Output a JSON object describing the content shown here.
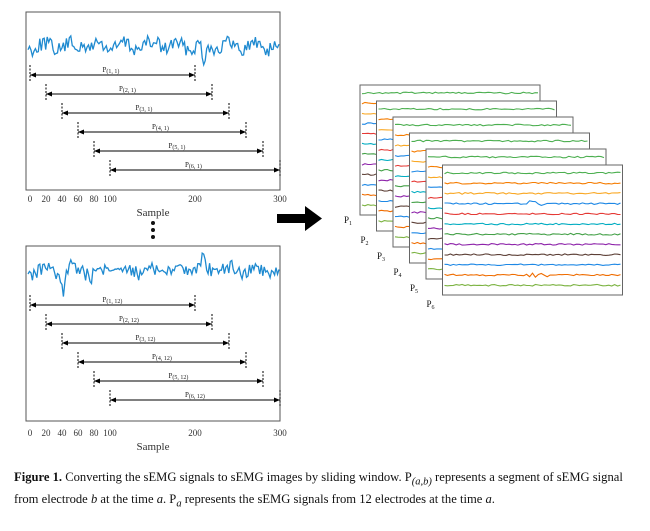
{
  "top_panel": {
    "x_ticks": [
      "0",
      "20",
      "40",
      "60",
      "80",
      "100",
      "200",
      "300"
    ],
    "x_title": "Sample",
    "segments": [
      {
        "label": "P",
        "sub": "(1, 1)",
        "start": 0,
        "end": 200
      },
      {
        "label": "P",
        "sub": "(2, 1)",
        "start": 20,
        "end": 220
      },
      {
        "label": "P",
        "sub": "(3, 1)",
        "start": 40,
        "end": 240
      },
      {
        "label": "P",
        "sub": "(4, 1)",
        "start": 60,
        "end": 260
      },
      {
        "label": "P",
        "sub": "(5, 1)",
        "start": 80,
        "end": 280
      },
      {
        "label": "P",
        "sub": "(6, 1)",
        "start": 100,
        "end": 300
      }
    ]
  },
  "bottom_panel": {
    "x_ticks": [
      "0",
      "20",
      "40",
      "60",
      "80",
      "100",
      "200",
      "300"
    ],
    "x_title": "Sample",
    "segments": [
      {
        "label": "P",
        "sub": "(1, 12)",
        "start": 0,
        "end": 200
      },
      {
        "label": "P",
        "sub": "(2, 12)",
        "start": 20,
        "end": 220
      },
      {
        "label": "P",
        "sub": "(3, 12)",
        "start": 40,
        "end": 240
      },
      {
        "label": "P",
        "sub": "(4, 12)",
        "start": 60,
        "end": 260
      },
      {
        "label": "P",
        "sub": "(5, 12)",
        "start": 80,
        "end": 280
      },
      {
        "label": "P",
        "sub": "(6, 12)",
        "start": 100,
        "end": 300
      }
    ]
  },
  "stack": {
    "labels": [
      {
        "main": "P",
        "sub": "1"
      },
      {
        "main": "P",
        "sub": "2"
      },
      {
        "main": "P",
        "sub": "3"
      },
      {
        "main": "P",
        "sub": "4"
      },
      {
        "main": "P",
        "sub": "5"
      },
      {
        "main": "P",
        "sub": "6"
      }
    ],
    "trace_colors": [
      "#4caf50",
      "#f57c00",
      "#f9a825",
      "#1e88e5",
      "#e53935",
      "#00acc1",
      "#43a047",
      "#8e24aa",
      "#5d4037",
      "#1e88e5",
      "#ef6c00",
      "#7cb342"
    ]
  },
  "signal_color": "#1f8ad0",
  "caption": {
    "label": "Figure 1.",
    "t1": "Converting the sEMG signals to sEMG images by sliding window. P",
    "sub_ab": "(a,b)",
    "t2": "represents a segment of sEMG signal from electrode",
    "b": "b",
    "t3": "at the time",
    "a1": "a",
    "t4": ". P",
    "sub_a": "a",
    "t5": "represents the sEMG signals from 12 electrodes at the time",
    "a2": "a",
    "t6": "."
  }
}
